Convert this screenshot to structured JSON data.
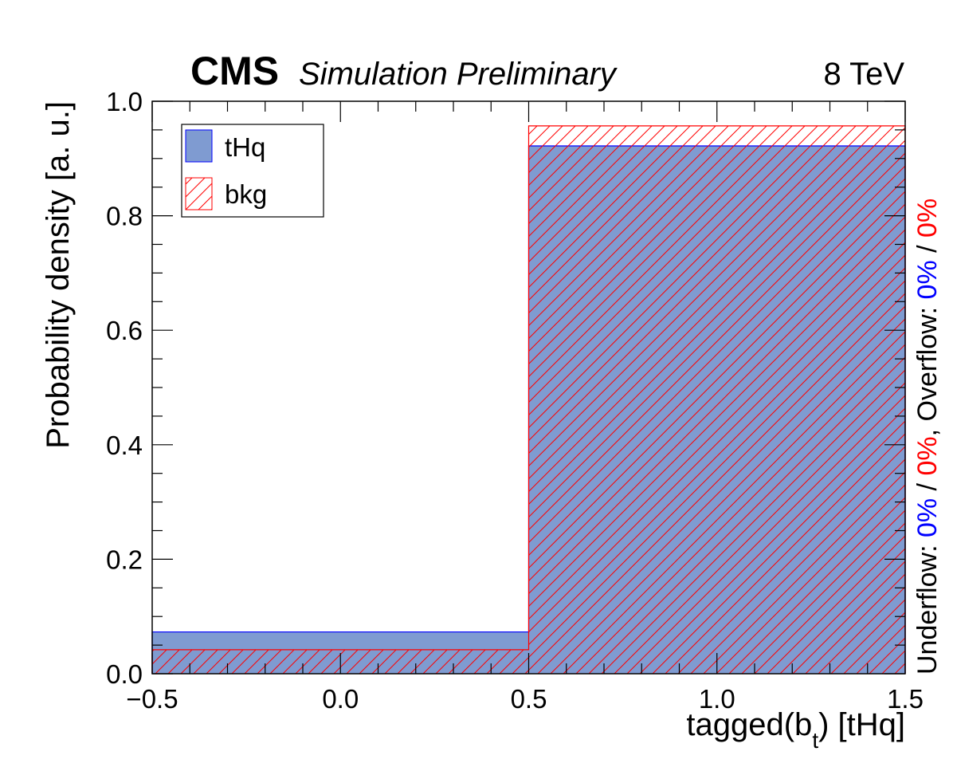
{
  "header": {
    "experiment": "CMS",
    "subtitle": "Simulation Preliminary",
    "energy": "8 TeV"
  },
  "flow_note": {
    "underflow_label": "Underflow:",
    "underflow_sig": "0%",
    "underflow_sep": "/",
    "underflow_bkg": "0%",
    "sep": ",",
    "overflow_label": "Overflow:",
    "overflow_sig": "0%",
    "overflow_sep": "/",
    "overflow_bkg": "0%"
  },
  "colors": {
    "signal_fill": "#7f9bd1",
    "signal_line": "#0000ff",
    "background_line": "#ff0000",
    "underflow_sig_text": "#0000ff",
    "underflow_bkg_text": "#ff0000"
  },
  "chart_data": {
    "type": "bar",
    "style": "histogram",
    "title": "",
    "xlabel_main": "tagged(b",
    "xlabel_sub": "t",
    "xlabel_tail": ") [tHq]",
    "ylabel": "Probability density [a. u.]",
    "xlim": [
      -0.5,
      1.5
    ],
    "ylim": [
      0,
      1.0
    ],
    "bin_edges": [
      -0.5,
      0.5,
      1.5
    ],
    "x_ticks": [
      -0.5,
      0.0,
      0.5,
      1.0,
      1.5
    ],
    "x_tick_labels": [
      "−0.5",
      "0.0",
      "0.5",
      "1.0",
      "1.5"
    ],
    "y_ticks": [
      0,
      0.2,
      0.4,
      0.6,
      0.8,
      1.0
    ],
    "y_tick_labels": [
      "0.0",
      "0.2",
      "0.4",
      "0.6",
      "0.8",
      "1.0"
    ],
    "grid": false,
    "legend_position": "top-left",
    "series": [
      {
        "name": "tHq",
        "values": [
          0.073,
          0.922
        ],
        "style": "filled"
      },
      {
        "name": "bkg",
        "values": [
          0.042,
          0.957
        ],
        "style": "hatched"
      }
    ]
  }
}
